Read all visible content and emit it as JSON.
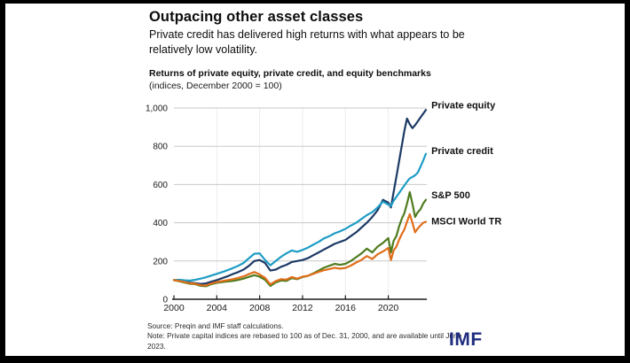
{
  "page": {
    "title": "Outpacing other asset classes",
    "subtitle": "Private credit has delivered high returns with what appears to be relatively low volatility."
  },
  "chart_data": {
    "type": "line",
    "title": "Returns of private equity, private credit, and equity benchmarks",
    "subtitle": "(indices, December 2000 = 100)",
    "xlim": [
      2000,
      2023.6
    ],
    "ylim": [
      0,
      1050
    ],
    "xticks": [
      2000,
      2004,
      2008,
      2012,
      2016,
      2020
    ],
    "yticks": [
      0,
      200,
      400,
      600,
      800,
      1000
    ],
    "ytick_labels": [
      "0",
      "200",
      "400",
      "600",
      "800",
      "1,000"
    ],
    "grid": "horizontal-light",
    "legend": "end-of-line-labels",
    "x": [
      2000,
      2000.5,
      2001,
      2001.5,
      2002,
      2002.5,
      2003,
      2003.5,
      2004,
      2004.5,
      2005,
      2005.5,
      2006,
      2006.5,
      2007,
      2007.5,
      2008,
      2008.5,
      2009,
      2009.5,
      2010,
      2010.5,
      2011,
      2011.5,
      2012,
      2012.5,
      2013,
      2013.5,
      2014,
      2014.5,
      2015,
      2015.5,
      2016,
      2016.5,
      2017,
      2017.5,
      2018,
      2018.5,
      2019,
      2019.5,
      2020,
      2020.25,
      2020.5,
      2020.75,
      2021,
      2021.25,
      2021.5,
      2021.75,
      2022,
      2022.25,
      2022.5,
      2022.75,
      2023,
      2023.25,
      2023.5
    ],
    "series": [
      {
        "name": "Private equity",
        "color": "#1c3a66",
        "label_value": 1015,
        "values": [
          100,
          98,
          93,
          87,
          84,
          80,
          83,
          92,
          100,
          110,
          120,
          132,
          142,
          155,
          175,
          200,
          205,
          190,
          150,
          155,
          170,
          180,
          195,
          200,
          205,
          215,
          230,
          245,
          260,
          275,
          290,
          300,
          310,
          330,
          350,
          375,
          400,
          430,
          465,
          520,
          505,
          480,
          560,
          640,
          720,
          800,
          880,
          945,
          915,
          895,
          910,
          930,
          950,
          970,
          990
        ]
      },
      {
        "name": "Private credit",
        "color": "#1e9cc5",
        "label_value": 775,
        "values": [
          100,
          102,
          99,
          97,
          102,
          108,
          115,
          124,
          133,
          142,
          152,
          163,
          175,
          190,
          215,
          238,
          240,
          205,
          178,
          200,
          222,
          240,
          255,
          248,
          258,
          270,
          285,
          300,
          318,
          330,
          345,
          355,
          368,
          385,
          400,
          420,
          440,
          455,
          480,
          510,
          495,
          488,
          515,
          535,
          555,
          575,
          595,
          615,
          632,
          640,
          648,
          662,
          692,
          725,
          760
        ]
      },
      {
        "name": "S&P 500",
        "color": "#4f7c1f",
        "label_value": 545,
        "values": [
          100,
          94,
          87,
          81,
          79,
          70,
          68,
          79,
          86,
          90,
          93,
          96,
          101,
          108,
          117,
          126,
          118,
          102,
          70,
          88,
          98,
          96,
          110,
          105,
          116,
          122,
          135,
          150,
          165,
          175,
          185,
          180,
          185,
          200,
          220,
          240,
          265,
          245,
          275,
          295,
          320,
          245,
          305,
          330,
          380,
          420,
          450,
          500,
          560,
          500,
          430,
          455,
          470,
          500,
          520
        ]
      },
      {
        "name": "MSCI World TR",
        "color": "#e06e1a",
        "label_value": 408,
        "values": [
          100,
          96,
          90,
          84,
          81,
          73,
          72,
          83,
          90,
          95,
          100,
          105,
          112,
          120,
          132,
          142,
          130,
          112,
          78,
          95,
          105,
          103,
          116,
          108,
          118,
          123,
          133,
          143,
          152,
          158,
          165,
          160,
          164,
          176,
          192,
          206,
          226,
          210,
          235,
          250,
          268,
          205,
          255,
          275,
          310,
          340,
          365,
          405,
          445,
          400,
          350,
          370,
          385,
          400,
          405
        ]
      }
    ]
  },
  "footer": {
    "source": "Source: Preqin and IMF staff calculations.",
    "note": "Note: Private capital indices are rebased to 100 as of Dec. 31, 2000, and are available until June 2023.",
    "logo": "IMF"
  }
}
